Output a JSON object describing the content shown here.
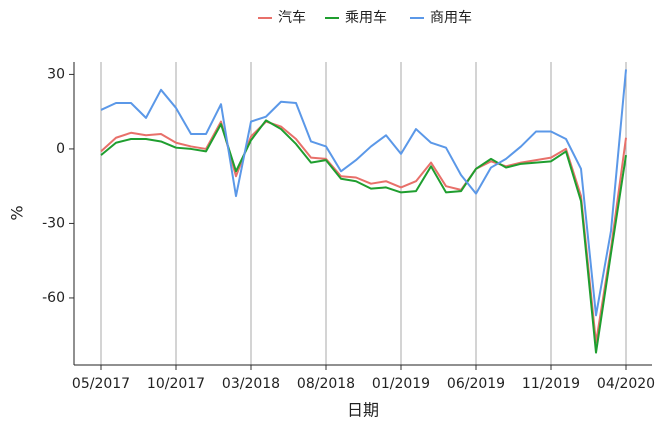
{
  "chart_data": {
    "type": "line",
    "xlabel": "日期",
    "ylabel": "%",
    "x": [
      "05/2017",
      "06/2017",
      "07/2017",
      "08/2017",
      "09/2017",
      "10/2017",
      "11/2017",
      "12/2017",
      "01/2018",
      "02/2018",
      "03/2018",
      "04/2018",
      "05/2018",
      "06/2018",
      "07/2018",
      "08/2018",
      "09/2018",
      "10/2018",
      "11/2018",
      "12/2018",
      "01/2019",
      "02/2019",
      "03/2019",
      "04/2019",
      "05/2019",
      "06/2019",
      "07/2019",
      "08/2019",
      "09/2019",
      "10/2019",
      "11/2019",
      "12/2019",
      "01/2020",
      "02/2020",
      "03/2020",
      "04/2020"
    ],
    "xticks": [
      "05/2017",
      "10/2017",
      "03/2018",
      "08/2018",
      "01/2019",
      "06/2019",
      "11/2019",
      "04/2020"
    ],
    "ylim": [
      -87,
      35
    ],
    "yticks": [
      30,
      0,
      -30,
      -60
    ],
    "grid": "x",
    "legend": "top",
    "series": [
      {
        "name": "汽车",
        "color": "#e8706a",
        "values": [
          -1,
          4.5,
          6.5,
          5.5,
          6,
          2.5,
          1,
          0,
          11,
          -11,
          5,
          11,
          9,
          4,
          -3.5,
          -4,
          -11,
          -11.5,
          -14,
          -13,
          -15.5,
          -13,
          -5.5,
          -15,
          -16.5,
          -8,
          -5,
          -7,
          -5.5,
          -4.5,
          -3.5,
          0,
          -19,
          -78,
          -40,
          4.5
        ]
      },
      {
        "name": "乘用车",
        "color": "#1f9e2f",
        "values": [
          -2.5,
          2.5,
          4,
          4,
          3,
          0.5,
          0,
          -1,
          10,
          -9,
          3.5,
          11.5,
          8,
          2,
          -5.5,
          -4.5,
          -12,
          -13,
          -16,
          -15.5,
          -17.5,
          -17,
          -7,
          -17.5,
          -17,
          -8,
          -4,
          -7.5,
          -6,
          -5.5,
          -5,
          -1,
          -21,
          -82,
          -42,
          -2.5
        ]
      },
      {
        "name": "商用车",
        "color": "#5b98e8",
        "values": [
          15.7,
          18.5,
          18.5,
          12.5,
          23.8,
          16.5,
          6,
          6,
          18,
          -19,
          11,
          13,
          19,
          18.5,
          3,
          1,
          -9,
          -4.5,
          1,
          5.5,
          -2,
          8,
          2.5,
          0.5,
          -10.5,
          -18,
          -7.5,
          -4,
          1,
          7,
          7,
          4,
          -8,
          -67,
          -33,
          32
        ]
      }
    ]
  }
}
